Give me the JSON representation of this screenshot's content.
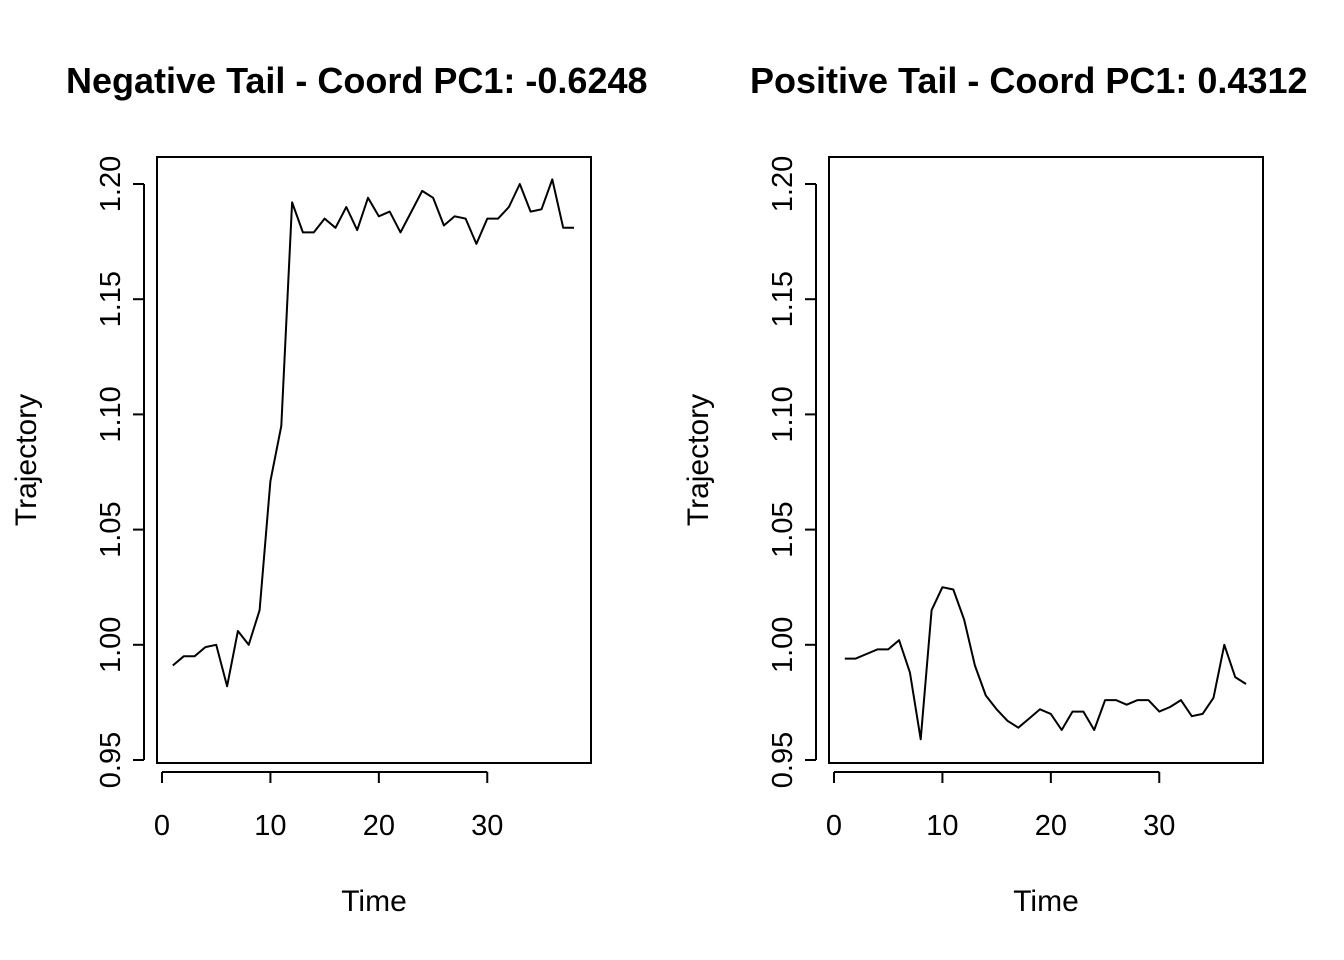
{
  "chart_data": [
    {
      "type": "line",
      "title": "Negative Tail - Coord PC1: -0.6248",
      "xlabel": "Time",
      "ylabel": "Trajectory",
      "xlim": [
        0,
        38
      ],
      "ylim": [
        0.95,
        1.2
      ],
      "xticks": [
        "0",
        "10",
        "20",
        "30"
      ],
      "yticks": [
        "0.95",
        "1.00",
        "1.05",
        "1.10",
        "1.15",
        "1.20"
      ],
      "grid": false,
      "x": [
        1,
        2,
        3,
        4,
        5,
        6,
        7,
        8,
        9,
        10,
        11,
        12,
        13,
        14,
        15,
        16,
        17,
        18,
        19,
        20,
        21,
        22,
        23,
        24,
        25,
        26,
        27,
        28,
        29,
        30,
        31,
        32,
        33,
        34,
        35,
        36,
        37,
        38
      ],
      "y": [
        0.991,
        0.995,
        0.995,
        0.999,
        1.0,
        0.982,
        1.006,
        1.0,
        1.015,
        1.071,
        1.095,
        1.192,
        1.179,
        1.179,
        1.185,
        1.181,
        1.19,
        1.18,
        1.194,
        1.186,
        1.188,
        1.179,
        1.188,
        1.197,
        1.194,
        1.182,
        1.186,
        1.185,
        1.174,
        1.185,
        1.185,
        1.19,
        1.2,
        1.188,
        1.189,
        1.202,
        1.181,
        1.181
      ]
    },
    {
      "type": "line",
      "title": "Positive Tail - Coord PC1: 0.4312",
      "xlabel": "Time",
      "ylabel": "Trajectory",
      "xlim": [
        0,
        38
      ],
      "ylim": [
        0.95,
        1.2
      ],
      "xticks": [
        "0",
        "10",
        "20",
        "30"
      ],
      "yticks": [
        "0.95",
        "1.00",
        "1.05",
        "1.10",
        "1.15",
        "1.20"
      ],
      "grid": false,
      "x": [
        1,
        2,
        3,
        4,
        5,
        6,
        7,
        8,
        9,
        10,
        11,
        12,
        13,
        14,
        15,
        16,
        17,
        18,
        19,
        20,
        21,
        22,
        23,
        24,
        25,
        26,
        27,
        28,
        29,
        30,
        31,
        32,
        33,
        34,
        35,
        36,
        37,
        38
      ],
      "y": [
        0.994,
        0.994,
        0.996,
        0.998,
        0.998,
        1.002,
        0.988,
        0.959,
        1.015,
        1.025,
        1.024,
        1.011,
        0.991,
        0.978,
        0.972,
        0.967,
        0.964,
        0.968,
        0.972,
        0.97,
        0.963,
        0.971,
        0.971,
        0.963,
        0.976,
        0.976,
        0.974,
        0.976,
        0.976,
        0.971,
        0.973,
        0.976,
        0.969,
        0.97,
        0.977,
        1.0,
        0.986,
        0.983
      ]
    }
  ]
}
